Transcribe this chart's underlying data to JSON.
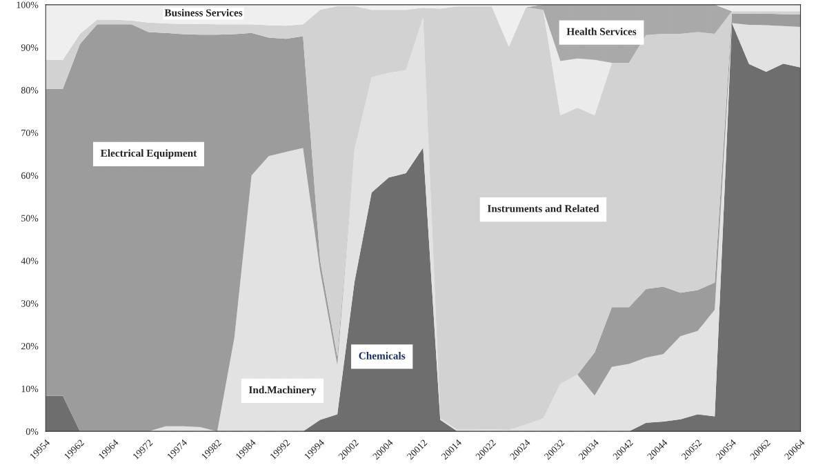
{
  "chart_data": {
    "type": "area",
    "stacked": true,
    "legend": false,
    "categories": [
      "19954",
      null,
      "19962",
      null,
      "19964",
      null,
      "19972",
      null,
      "19974",
      null,
      "19982",
      null,
      "19984",
      null,
      "19992",
      null,
      "19994",
      null,
      "20002",
      null,
      "20004",
      null,
      "20012",
      null,
      "20014",
      null,
      "20022",
      null,
      "20024",
      null,
      "20032",
      null,
      "20034",
      null,
      "20042",
      null,
      "20044",
      null,
      "20052",
      null,
      "20054",
      null,
      "20062",
      null,
      "20064"
    ],
    "ylim": [
      0,
      100
    ],
    "yticks": [
      {
        "value": 0,
        "label": "0%"
      },
      {
        "value": 10,
        "label": "10%"
      },
      {
        "value": 20,
        "label": "20%"
      },
      {
        "value": 30,
        "label": "30%"
      },
      {
        "value": 40,
        "label": "40%"
      },
      {
        "value": 50,
        "label": "50%"
      },
      {
        "value": 60,
        "label": "60%"
      },
      {
        "value": 70,
        "label": "70%"
      },
      {
        "value": 80,
        "label": "80%"
      },
      {
        "value": 90,
        "label": "90%"
      },
      {
        "value": 100,
        "label": "100%"
      }
    ],
    "series": [
      {
        "name": "Chemicals",
        "color": "#6e6e6e",
        "values": [
          8.3,
          8.3,
          0,
          0,
          0,
          0,
          0,
          0,
          0,
          0,
          0,
          0,
          0,
          0,
          0,
          0,
          2.7,
          4,
          35,
          56,
          59.5,
          60.5,
          66.5,
          2.7,
          0,
          0,
          0,
          0,
          0,
          0,
          0,
          0,
          0,
          0,
          0,
          2,
          2.3,
          2.8,
          4,
          3.5,
          95.7,
          86.1,
          84.3,
          86.2,
          85.3
        ]
      },
      {
        "name": "Ind.Machinery",
        "color": "#e2e2e2",
        "values": [
          0,
          0,
          0,
          0,
          0,
          0,
          0,
          1.2,
          1.2,
          1.0,
          0,
          22,
          60,
          64.5,
          65.5,
          66.4,
          34.8,
          11.5,
          31,
          27,
          24.5,
          24.2,
          30.5,
          0.3,
          0.4,
          0.4,
          0.5,
          0.3,
          1.6,
          3.0,
          11.1,
          13.3,
          8.4,
          15.1,
          15.8,
          15.3,
          15.8,
          19.5,
          19.5,
          25,
          0,
          9.2,
          10.9,
          8.8,
          9.5
        ]
      },
      {
        "name": "Electrical Equipment",
        "color": "#9c9c9c",
        "values": [
          72,
          72,
          90.8,
          95.4,
          95.4,
          95.4,
          93.6,
          92.2,
          91.9,
          92.0,
          93.0,
          71.1,
          33.4,
          27.8,
          26.5,
          26.2,
          2.5,
          2.0,
          0,
          0,
          0,
          0,
          0,
          0,
          0,
          0,
          0,
          0,
          0,
          0,
          0,
          0,
          10.1,
          14.0,
          13.3,
          16.1,
          15.8,
          10.2,
          9.6,
          6.4,
          2.2,
          2.6,
          2.7,
          2.8,
          2.9
        ]
      },
      {
        "name": "Instruments and Related",
        "color": "#d2d2d2",
        "values": [
          6.8,
          6.8,
          2.4,
          1.1,
          1.1,
          0.9,
          2.2,
          2.2,
          2.4,
          2.5,
          2.4,
          2.3,
          2.0,
          2.9,
          3.1,
          2.8,
          58.8,
          82.2,
          33.7,
          15.8,
          14.8,
          14.1,
          2.3,
          96.1,
          99.2,
          99.2,
          99.1,
          89.9,
          97.8,
          95.8,
          63.0,
          62.6,
          55.6,
          57.3,
          57.3,
          59.5,
          59.3,
          60.7,
          60.5,
          58.3,
          0.6,
          0.6,
          0.6,
          0.7,
          0.8
        ]
      },
      {
        "color": "#ebebeb",
        "values": [
          0,
          0,
          0,
          0,
          0,
          0,
          0,
          0,
          0,
          0,
          0,
          0,
          0,
          0,
          0,
          0,
          0,
          0,
          0,
          0,
          0,
          0,
          0,
          0,
          0,
          0,
          0,
          0,
          0,
          0,
          12.7,
          11.5,
          13.0,
          0,
          0,
          0,
          0,
          0,
          0,
          0,
          0,
          0,
          0,
          0,
          0
        ]
      },
      {
        "name": "Health Services",
        "color": "#a9a9a9",
        "values": [
          0,
          0,
          0,
          0,
          0,
          0,
          0,
          0,
          0,
          0,
          0,
          0,
          0,
          0,
          0,
          0,
          0,
          0,
          0,
          0,
          0,
          0,
          0,
          0,
          0,
          0,
          0,
          0,
          0,
          1.2,
          13.2,
          12.6,
          12.9,
          13.6,
          13.6,
          7.1,
          6.8,
          6.8,
          6.4,
          6.8,
          0,
          0,
          0,
          0,
          0
        ]
      },
      {
        "name": "Business Services",
        "color": "#efefef",
        "values": [
          12.9,
          12.9,
          6.8,
          3.5,
          3.5,
          3.7,
          4.2,
          4.4,
          4.5,
          4.5,
          4.6,
          4.6,
          4.6,
          4.8,
          4.9,
          4.6,
          1.2,
          0.3,
          0.3,
          1.2,
          1.2,
          1.2,
          0.7,
          0.9,
          0.4,
          0.4,
          0.4,
          9.8,
          0.6,
          0,
          0,
          0,
          0,
          0,
          0,
          0,
          0,
          0,
          0,
          0,
          1.5,
          1.5,
          1.5,
          1.5,
          1.5
        ]
      }
    ]
  }
}
